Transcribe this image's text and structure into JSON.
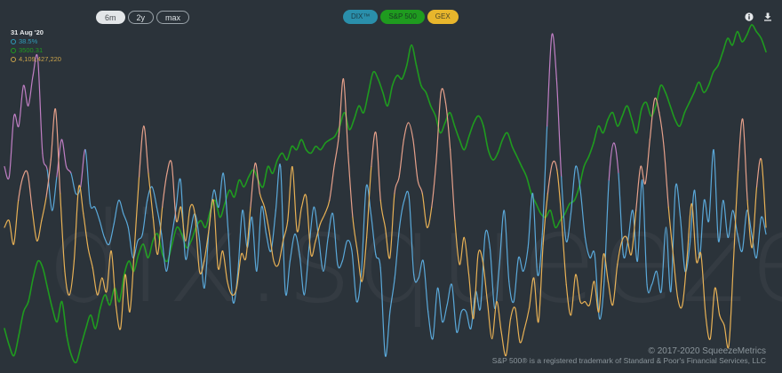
{
  "watermark": "dix.squeeze.com",
  "range_buttons": [
    {
      "label": "6m",
      "active": true
    },
    {
      "label": "2y",
      "active": false
    },
    {
      "label": "max",
      "active": false
    }
  ],
  "legend": [
    {
      "label": "DIX™",
      "color": "#2a8fab"
    },
    {
      "label": "S&P 500",
      "color": "#1f9b1f"
    },
    {
      "label": "GEX",
      "color": "#e8b62c"
    }
  ],
  "readout": {
    "date": "31 Aug '20",
    "dix": "38.5%",
    "spx": "3500.31",
    "gex": "4,109,427,220"
  },
  "icons": {
    "info": "info-icon",
    "download": "download-icon"
  },
  "footer": {
    "copyright": "© 2017-2020 SqueezeMetrics",
    "trademark": "S&P 500® is a registered trademark of Standard & Poor's Financial Services, LLC"
  },
  "chart_data": {
    "type": "line",
    "title": "",
    "xlabel": "",
    "ylabel": "",
    "x_range": [
      "2020-03-02",
      "2020-08-31"
    ],
    "grid": false,
    "legend": "top-center",
    "series": [
      {
        "name": "DIX™",
        "color": "#5aa9da",
        "highlight_color": "#c07fc4",
        "highlight_above": 0.55,
        "values": [
          0.58,
          0.55,
          0.73,
          0.7,
          0.82,
          0.76,
          0.85,
          0.9,
          0.62,
          0.57,
          0.45,
          0.55,
          0.66,
          0.58,
          0.56,
          0.5,
          0.52,
          0.63,
          0.47,
          0.46,
          0.42,
          0.37,
          0.35,
          0.41,
          0.48,
          0.44,
          0.4,
          0.31,
          0.36,
          0.38,
          0.48,
          0.52,
          0.46,
          0.38,
          0.27,
          0.36,
          0.45,
          0.54,
          0.31,
          0.38,
          0.44,
          0.36,
          0.22,
          0.4,
          0.51,
          0.46,
          0.56,
          0.39,
          0.18,
          0.26,
          0.45,
          0.34,
          0.43,
          0.27,
          0.46,
          0.38,
          0.33,
          0.45,
          0.58,
          0.21,
          0.3,
          0.38,
          0.32,
          0.2,
          0.34,
          0.46,
          0.37,
          0.27,
          0.37,
          0.44,
          0.29,
          0.3,
          0.36,
          0.33,
          0.18,
          0.27,
          0.52,
          0.44,
          0.32,
          0.28,
          0.02,
          0.15,
          0.25,
          0.4,
          0.48,
          0.49,
          0.26,
          0.25,
          0.3,
          0.15,
          0.07,
          0.22,
          0.12,
          0.17,
          0.23,
          0.09,
          0.15,
          0.15,
          0.1,
          0.21,
          0.16,
          0.38,
          0.34,
          0.16,
          0.29,
          0.45,
          0.24,
          0.18,
          0.31,
          0.27,
          0.34,
          0.5,
          0.26,
          0.38,
          0.7,
          0.97,
          0.84,
          0.55,
          0.36,
          0.44,
          0.58,
          0.51,
          0.37,
          0.31,
          0.32,
          0.13,
          0.24,
          0.54,
          0.65,
          0.56,
          0.32,
          0.36,
          0.45,
          0.3,
          0.54,
          0.23,
          0.23,
          0.27,
          0.21,
          0.4,
          0.21,
          0.52,
          0.43,
          0.27,
          0.35,
          0.51,
          0.31,
          0.48,
          0.42,
          0.63,
          0.36,
          0.48,
          0.37,
          0.45,
          0.38,
          0.33,
          0.45,
          0.38,
          0.31,
          0.43,
          0.38
        ]
      },
      {
        "name": "S&P 500",
        "color": "#1f9b1f",
        "values": [
          0.1,
          0.05,
          0.02,
          0.08,
          0.15,
          0.18,
          0.25,
          0.3,
          0.28,
          0.22,
          0.16,
          0.12,
          0.18,
          0.08,
          0.02,
          0.0,
          0.05,
          0.1,
          0.14,
          0.1,
          0.16,
          0.2,
          0.17,
          0.22,
          0.18,
          0.26,
          0.3,
          0.27,
          0.32,
          0.35,
          0.31,
          0.36,
          0.38,
          0.32,
          0.3,
          0.35,
          0.4,
          0.38,
          0.34,
          0.36,
          0.4,
          0.42,
          0.4,
          0.45,
          0.48,
          0.43,
          0.47,
          0.51,
          0.49,
          0.54,
          0.52,
          0.55,
          0.57,
          0.54,
          0.52,
          0.58,
          0.56,
          0.6,
          0.62,
          0.6,
          0.64,
          0.63,
          0.66,
          0.63,
          0.62,
          0.64,
          0.63,
          0.65,
          0.66,
          0.67,
          0.7,
          0.74,
          0.69,
          0.72,
          0.76,
          0.74,
          0.8,
          0.86,
          0.84,
          0.8,
          0.76,
          0.82,
          0.85,
          0.84,
          0.88,
          0.94,
          0.88,
          0.82,
          0.8,
          0.76,
          0.73,
          0.68,
          0.71,
          0.74,
          0.7,
          0.66,
          0.63,
          0.67,
          0.71,
          0.73,
          0.7,
          0.63,
          0.6,
          0.62,
          0.66,
          0.68,
          0.64,
          0.61,
          0.58,
          0.55,
          0.5,
          0.47,
          0.44,
          0.43,
          0.45,
          0.4,
          0.42,
          0.44,
          0.47,
          0.48,
          0.52,
          0.58,
          0.61,
          0.65,
          0.7,
          0.68,
          0.72,
          0.74,
          0.7,
          0.73,
          0.76,
          0.72,
          0.68,
          0.75,
          0.77,
          0.73,
          0.76,
          0.82,
          0.8,
          0.76,
          0.72,
          0.7,
          0.74,
          0.77,
          0.8,
          0.83,
          0.8,
          0.82,
          0.86,
          0.88,
          0.92,
          0.96,
          0.94,
          0.98,
          0.95,
          0.97,
          1.0,
          0.98,
          0.96,
          0.92
        ]
      },
      {
        "name": "GEX",
        "color": "#e8b155",
        "highlight_color": "#e6a08a",
        "highlight_above": 0.5,
        "values": [
          0.4,
          0.42,
          0.35,
          0.48,
          0.55,
          0.56,
          0.45,
          0.36,
          0.42,
          0.49,
          0.6,
          0.75,
          0.5,
          0.27,
          0.2,
          0.3,
          0.52,
          0.44,
          0.34,
          0.28,
          0.2,
          0.25,
          0.21,
          0.33,
          0.17,
          0.1,
          0.26,
          0.15,
          0.34,
          0.55,
          0.7,
          0.56,
          0.43,
          0.32,
          0.46,
          0.56,
          0.59,
          0.42,
          0.46,
          0.36,
          0.46,
          0.44,
          0.27,
          0.3,
          0.39,
          0.48,
          0.28,
          0.33,
          0.24,
          0.2,
          0.22,
          0.32,
          0.31,
          0.46,
          0.59,
          0.5,
          0.46,
          0.39,
          0.3,
          0.29,
          0.36,
          0.42,
          0.58,
          0.39,
          0.46,
          0.49,
          0.32,
          0.36,
          0.41,
          0.44,
          0.48,
          0.58,
          0.67,
          0.84,
          0.62,
          0.43,
          0.33,
          0.24,
          0.37,
          0.58,
          0.68,
          0.48,
          0.4,
          0.31,
          0.5,
          0.55,
          0.66,
          0.71,
          0.66,
          0.54,
          0.5,
          0.4,
          0.46,
          0.6,
          0.8,
          0.77,
          0.63,
          0.42,
          0.29,
          0.37,
          0.26,
          0.13,
          0.32,
          0.3,
          0.18,
          0.07,
          0.18,
          0.09,
          0.02,
          0.13,
          0.16,
          0.06,
          0.1,
          0.16,
          0.25,
          0.12,
          0.35,
          0.5,
          0.59,
          0.57,
          0.42,
          0.23,
          0.14,
          0.26,
          0.18,
          0.18,
          0.17,
          0.24,
          0.15,
          0.32,
          0.24,
          0.17,
          0.29,
          0.36,
          0.37,
          0.32,
          0.45,
          0.58,
          0.53,
          0.66,
          0.78,
          0.74,
          0.64,
          0.46,
          0.32,
          0.19,
          0.17,
          0.31,
          0.47,
          0.3,
          0.32,
          0.14,
          0.07,
          0.22,
          0.14,
          0.11,
          0.05,
          0.3,
          0.57,
          0.72,
          0.48,
          0.34,
          0.52,
          0.6,
          0.4
        ]
      }
    ]
  }
}
